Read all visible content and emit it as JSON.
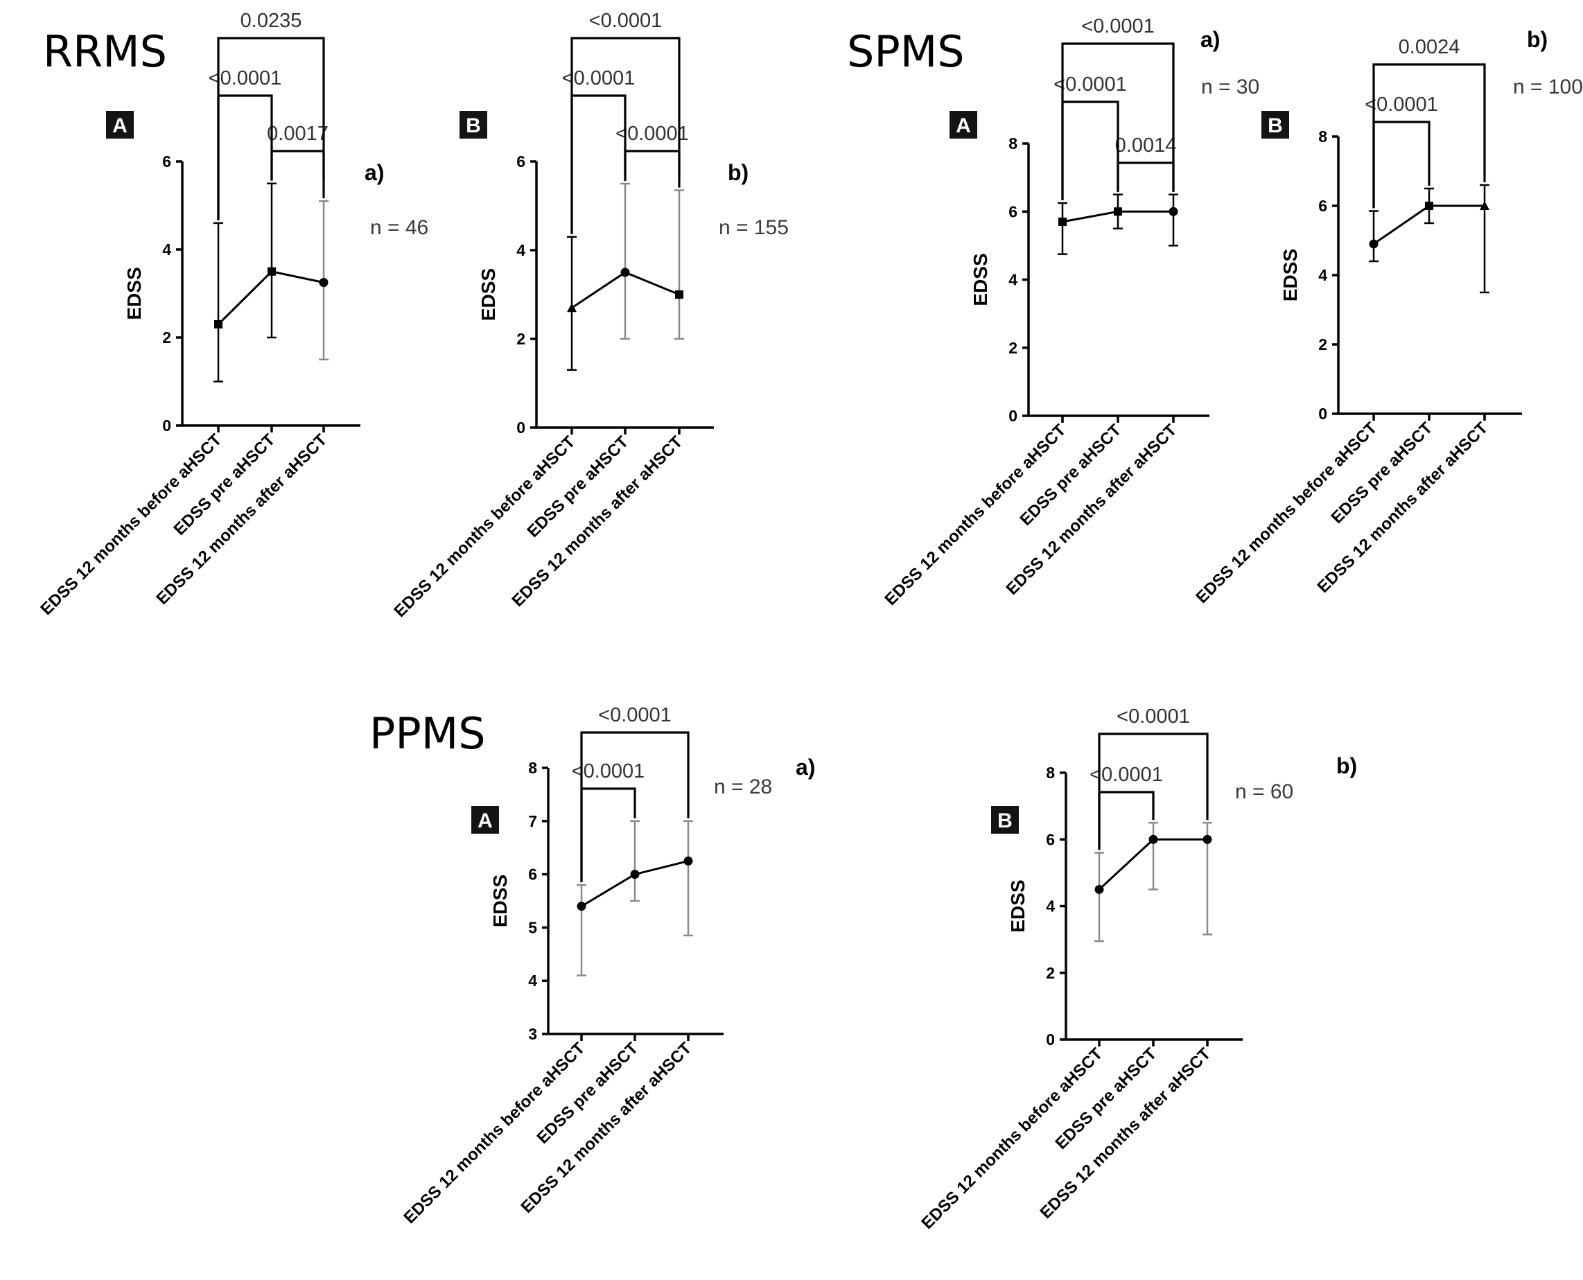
{
  "groups": [
    {
      "title": "RRMS"
    },
    {
      "title": "SPMS"
    },
    {
      "title": "PPMS"
    }
  ],
  "chart_data": [
    {
      "type": "line",
      "group": "RRMS",
      "panel": "A",
      "tag": "a)",
      "n_label": "n = 46",
      "categories": [
        "EDSS 12 months before aHSCT",
        "EDSS pre aHSCT",
        "EDSS 12 months after aHSCT"
      ],
      "ylabel": "EDSS",
      "ylim": [
        0,
        6
      ],
      "yticks": [
        0,
        2,
        4,
        6
      ],
      "values": [
        2.3,
        3.5,
        3.25
      ],
      "error_low": [
        1.0,
        2.0,
        1.5
      ],
      "error_high": [
        4.6,
        5.5,
        5.1
      ],
      "markers": [
        "square",
        "square",
        "circle"
      ],
      "comparisons": [
        {
          "from": 1,
          "to": 2,
          "label": "0.0017"
        },
        {
          "from": 0,
          "to": 1,
          "label": "<0.0001"
        },
        {
          "from": 0,
          "to": 2,
          "label": "0.0235"
        }
      ]
    },
    {
      "type": "line",
      "group": "RRMS",
      "panel": "B",
      "tag": "b)",
      "n_label": "n = 155",
      "categories": [
        "EDSS 12 months before aHSCT",
        "EDSS pre aHSCT",
        "EDSS 12 months after aHSCT"
      ],
      "ylabel": "EDSS",
      "ylim": [
        0,
        6
      ],
      "yticks": [
        0,
        2,
        4,
        6
      ],
      "values": [
        2.7,
        3.5,
        3.0
      ],
      "error_low": [
        1.3,
        2.0,
        2.0
      ],
      "error_high": [
        4.3,
        5.5,
        5.35
      ],
      "markers": [
        "triangle",
        "circle",
        "square"
      ],
      "comparisons": [
        {
          "from": 1,
          "to": 2,
          "label": "<0.0001"
        },
        {
          "from": 0,
          "to": 1,
          "label": "<0.0001"
        },
        {
          "from": 0,
          "to": 2,
          "label": "<0.0001"
        }
      ]
    },
    {
      "type": "line",
      "group": "SPMS",
      "panel": "A",
      "tag": "a)",
      "n_label": "n = 30",
      "categories": [
        "EDSS 12 months before aHSCT",
        "EDSS pre aHSCT",
        "EDSS 12 months after aHSCT"
      ],
      "ylabel": "EDSS",
      "ylim": [
        0,
        8
      ],
      "yticks": [
        0,
        2,
        4,
        6,
        8
      ],
      "values": [
        5.7,
        6.0,
        6.0
      ],
      "error_low": [
        4.75,
        5.5,
        5.0
      ],
      "error_high": [
        6.25,
        6.5,
        6.5
      ],
      "markers": [
        "square",
        "square",
        "circle"
      ],
      "comparisons": [
        {
          "from": 1,
          "to": 2,
          "label": "0.0014"
        },
        {
          "from": 0,
          "to": 1,
          "label": "<0.0001"
        },
        {
          "from": 0,
          "to": 2,
          "label": "<0.0001"
        }
      ]
    },
    {
      "type": "line",
      "group": "SPMS",
      "panel": "B",
      "tag": "b)",
      "n_label": "n = 100",
      "categories": [
        "EDSS 12 months before aHSCT",
        "EDSS pre aHSCT",
        "EDSS 12 months after aHSCT"
      ],
      "ylabel": "EDSS",
      "ylim": [
        0,
        8
      ],
      "yticks": [
        0,
        2,
        4,
        6,
        8
      ],
      "values": [
        4.9,
        6.0,
        6.0
      ],
      "error_low": [
        4.4,
        5.5,
        3.5
      ],
      "error_high": [
        5.85,
        6.5,
        6.6
      ],
      "markers": [
        "circle",
        "square",
        "triangle"
      ],
      "comparisons": [
        {
          "from": 0,
          "to": 1,
          "label": "<0.0001"
        },
        {
          "from": 0,
          "to": 2,
          "label": "0.0024"
        }
      ]
    },
    {
      "type": "line",
      "group": "PPMS",
      "panel": "A",
      "tag": "a)",
      "n_label": "n = 28",
      "categories": [
        "EDSS 12 months before aHSCT",
        "EDSS pre aHSCT",
        "EDSS 12 months after aHSCT"
      ],
      "ylabel": "EDSS",
      "ylim": [
        3,
        8
      ],
      "yticks": [
        3,
        4,
        5,
        6,
        7,
        8
      ],
      "values": [
        5.4,
        6.0,
        6.25
      ],
      "error_low": [
        4.1,
        5.5,
        4.85
      ],
      "error_high": [
        5.8,
        7.0,
        7.0
      ],
      "markers": [
        "circle",
        "circle",
        "circle"
      ],
      "comparisons": [
        {
          "from": 0,
          "to": 1,
          "label": "<0.0001"
        },
        {
          "from": 0,
          "to": 2,
          "label": "<0.0001"
        }
      ]
    },
    {
      "type": "line",
      "group": "PPMS",
      "panel": "B",
      "tag": "b)",
      "n_label": "n = 60",
      "categories": [
        "EDSS 12 months before aHSCT",
        "EDSS pre aHSCT",
        "EDSS 12 months after aHSCT"
      ],
      "ylabel": "EDSS",
      "ylim": [
        0,
        8
      ],
      "yticks": [
        0,
        2,
        4,
        6,
        8
      ],
      "values": [
        4.5,
        6.0,
        6.0
      ],
      "error_low": [
        2.95,
        4.5,
        3.15
      ],
      "error_high": [
        5.6,
        6.5,
        6.5
      ],
      "markers": [
        "circle",
        "circle",
        "circle"
      ],
      "comparisons": [
        {
          "from": 0,
          "to": 1,
          "label": "<0.0001"
        },
        {
          "from": 0,
          "to": 2,
          "label": "<0.0001"
        }
      ]
    }
  ]
}
